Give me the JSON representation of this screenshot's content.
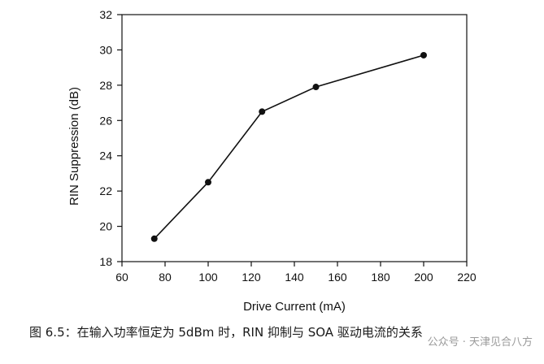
{
  "chart_data": {
    "type": "line",
    "xlabel": "Drive Current (mA)",
    "ylabel": "RIN Suppression (dB)",
    "xlim": [
      60,
      220
    ],
    "ylim": [
      18,
      32
    ],
    "xticks": [
      60,
      80,
      100,
      120,
      140,
      160,
      180,
      200,
      220
    ],
    "yticks": [
      18,
      20,
      22,
      24,
      26,
      28,
      30,
      32
    ],
    "grid": false,
    "series": [
      {
        "x": [
          75,
          100,
          125,
          150,
          200
        ],
        "y": [
          19.3,
          22.5,
          26.5,
          27.9,
          29.7
        ]
      }
    ]
  },
  "caption": "图 6.5：在输入功率恒定为 5dBm 时，RIN 抑制与 SOA 驱动电流的关系",
  "watermark": "公众号 · 天津见合八方"
}
